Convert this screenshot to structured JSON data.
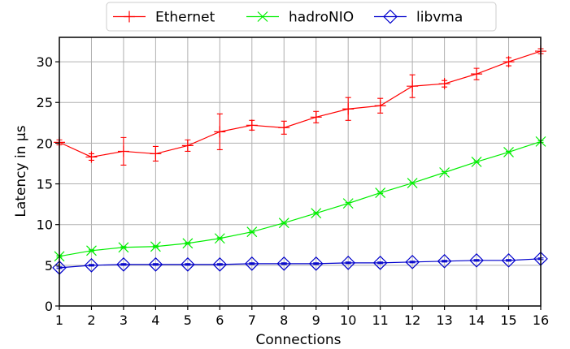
{
  "chart_data": {
    "type": "line",
    "xlabel": "Connections",
    "ylabel": "Latency in µs",
    "x": [
      1,
      2,
      3,
      4,
      5,
      6,
      7,
      8,
      9,
      10,
      11,
      12,
      13,
      14,
      15,
      16
    ],
    "xlim": [
      1,
      16
    ],
    "ylim": [
      0,
      33
    ],
    "xticks": [
      1,
      2,
      3,
      4,
      5,
      6,
      7,
      8,
      9,
      10,
      11,
      12,
      13,
      14,
      15,
      16
    ],
    "yticks": [
      0,
      5,
      10,
      15,
      20,
      25,
      30
    ],
    "grid": true,
    "legend_position": "top-center",
    "series": [
      {
        "name": "Ethernet",
        "color": "#ff0000",
        "marker": "plus",
        "values": [
          20.1,
          18.3,
          19.0,
          18.7,
          19.7,
          21.4,
          22.2,
          21.9,
          23.2,
          24.2,
          24.6,
          27.0,
          27.3,
          28.5,
          30.0,
          31.3
        ],
        "error": [
          0.3,
          0.4,
          1.7,
          0.9,
          0.7,
          2.2,
          0.6,
          0.8,
          0.7,
          1.4,
          0.9,
          1.4,
          0.4,
          0.7,
          0.5,
          0.3
        ]
      },
      {
        "name": "hadroNIO",
        "color": "#00ee00",
        "marker": "x",
        "values": [
          6.1,
          6.8,
          7.2,
          7.3,
          7.7,
          8.3,
          9.1,
          10.2,
          11.4,
          12.6,
          13.9,
          15.1,
          16.4,
          17.7,
          18.9,
          20.2
        ],
        "error": [
          0.1,
          0.1,
          0.1,
          0.1,
          0.1,
          0.1,
          0.1,
          0.1,
          0.1,
          0.1,
          0.1,
          0.1,
          0.1,
          0.1,
          0.1,
          0.1
        ]
      },
      {
        "name": "libvma",
        "color": "#0000cc",
        "marker": "diamond",
        "values": [
          4.7,
          5.0,
          5.1,
          5.1,
          5.1,
          5.1,
          5.2,
          5.2,
          5.2,
          5.3,
          5.3,
          5.4,
          5.5,
          5.6,
          5.6,
          5.8
        ],
        "error": [
          0.1,
          0.1,
          0.1,
          0.1,
          0.1,
          0.1,
          0.1,
          0.1,
          0.1,
          0.1,
          0.1,
          0.1,
          0.1,
          0.1,
          0.1,
          0.1
        ]
      }
    ]
  }
}
